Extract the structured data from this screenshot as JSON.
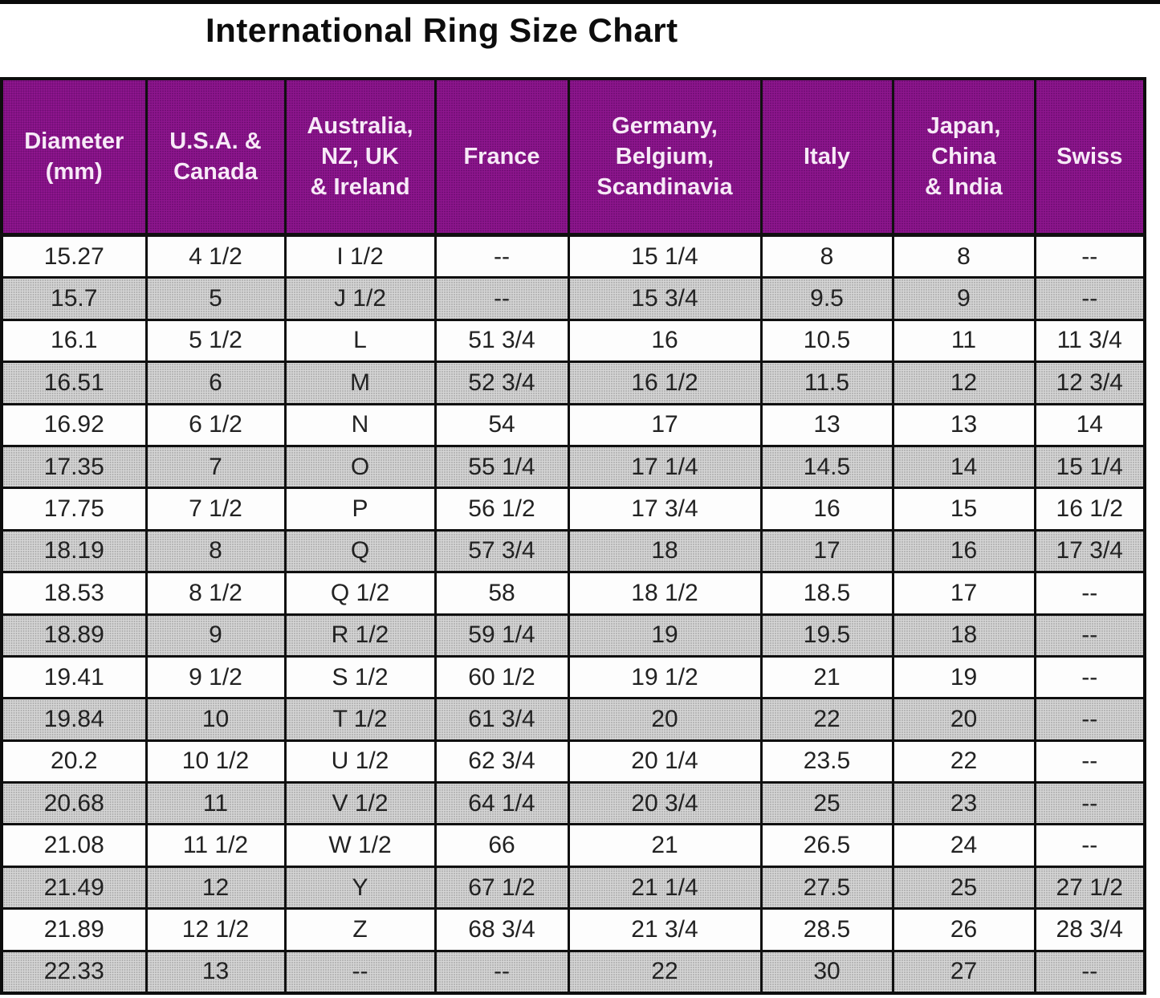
{
  "title": "International Ring Size Chart",
  "colors": {
    "header_bg": "#8e168e",
    "header_text": "#ffffff",
    "row_alt_bg": "#cccccc",
    "row_bg": "#ffffff",
    "border": "#101010",
    "title_text": "#0d0d0d"
  },
  "chart_data": {
    "type": "table",
    "title": "International Ring Size Chart",
    "columns": [
      "Diameter\n(mm)",
      "U.S.A. &\nCanada",
      "Australia,\nNZ, UK\n& Ireland",
      "France",
      "Germany,\nBelgium,\nScandinavia",
      "Italy",
      "Japan,\nChina\n& India",
      "Swiss"
    ],
    "rows": [
      [
        "15.27",
        "4 1/2",
        "I 1/2",
        "--",
        "15 1/4",
        "8",
        "8",
        "--"
      ],
      [
        "15.7",
        "5",
        "J 1/2",
        "--",
        "15 3/4",
        "9.5",
        "9",
        "--"
      ],
      [
        "16.1",
        "5 1/2",
        "L",
        "51 3/4",
        "16",
        "10.5",
        "11",
        "11 3/4"
      ],
      [
        "16.51",
        "6",
        "M",
        "52 3/4",
        "16 1/2",
        "11.5",
        "12",
        "12 3/4"
      ],
      [
        "16.92",
        "6 1/2",
        "N",
        "54",
        "17",
        "13",
        "13",
        "14"
      ],
      [
        "17.35",
        "7",
        "O",
        "55 1/4",
        "17 1/4",
        "14.5",
        "14",
        "15 1/4"
      ],
      [
        "17.75",
        "7 1/2",
        "P",
        "56 1/2",
        "17 3/4",
        "16",
        "15",
        "16 1/2"
      ],
      [
        "18.19",
        "8",
        "Q",
        "57 3/4",
        "18",
        "17",
        "16",
        "17 3/4"
      ],
      [
        "18.53",
        "8 1/2",
        "Q 1/2",
        "58",
        "18 1/2",
        "18.5",
        "17",
        "--"
      ],
      [
        "18.89",
        "9",
        "R 1/2",
        "59 1/4",
        "19",
        "19.5",
        "18",
        "--"
      ],
      [
        "19.41",
        "9 1/2",
        "S 1/2",
        "60 1/2",
        "19 1/2",
        "21",
        "19",
        "--"
      ],
      [
        "19.84",
        "10",
        "T 1/2",
        "61 3/4",
        "20",
        "22",
        "20",
        "--"
      ],
      [
        "20.2",
        "10 1/2",
        "U 1/2",
        "62 3/4",
        "20 1/4",
        "23.5",
        "22",
        "--"
      ],
      [
        "20.68",
        "11",
        "V 1/2",
        "64 1/4",
        "20 3/4",
        "25",
        "23",
        "--"
      ],
      [
        "21.08",
        "11 1/2",
        "W 1/2",
        "66",
        "21",
        "26.5",
        "24",
        "--"
      ],
      [
        "21.49",
        "12",
        "Y",
        "67 1/2",
        "21 1/4",
        "27.5",
        "25",
        "27 1/2"
      ],
      [
        "21.89",
        "12 1/2",
        "Z",
        "68 3/4",
        "21 3/4",
        "28.5",
        "26",
        "28 3/4"
      ],
      [
        "22.33",
        "13",
        "--",
        "--",
        "22",
        "30",
        "27",
        "--"
      ]
    ]
  }
}
